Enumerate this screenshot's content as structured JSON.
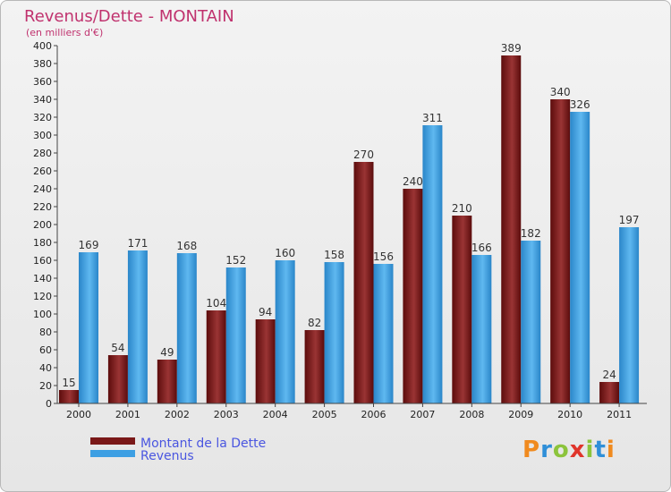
{
  "chart_data": {
    "type": "bar",
    "title": "Revenus/Dette - MONTAIN",
    "subtitle": "(en milliers d'€)",
    "categories": [
      "2000",
      "2001",
      "2002",
      "2003",
      "2004",
      "2005",
      "2006",
      "2007",
      "2008",
      "2009",
      "2010",
      "2011"
    ],
    "series": [
      {
        "name": "Montant de la Dette",
        "values": [
          15,
          54,
          49,
          104,
          94,
          82,
          270,
          240,
          210,
          389,
          340,
          24
        ],
        "color": "#7a1818"
      },
      {
        "name": "Revenus",
        "values": [
          169,
          171,
          168,
          152,
          160,
          158,
          156,
          311,
          166,
          182,
          326,
          197
        ],
        "color": "#3d9fe3"
      }
    ],
    "ylim": [
      0,
      400
    ],
    "ytick_step": 20,
    "grid": false,
    "legend_position": "bottom-left"
  },
  "logo": {
    "text": "Proxiti",
    "colors": [
      "#f08a1e",
      "#2f8fd8",
      "#8cc43c",
      "#e0352b",
      "#8cc43c",
      "#2f8fd8",
      "#f08a1e"
    ]
  }
}
